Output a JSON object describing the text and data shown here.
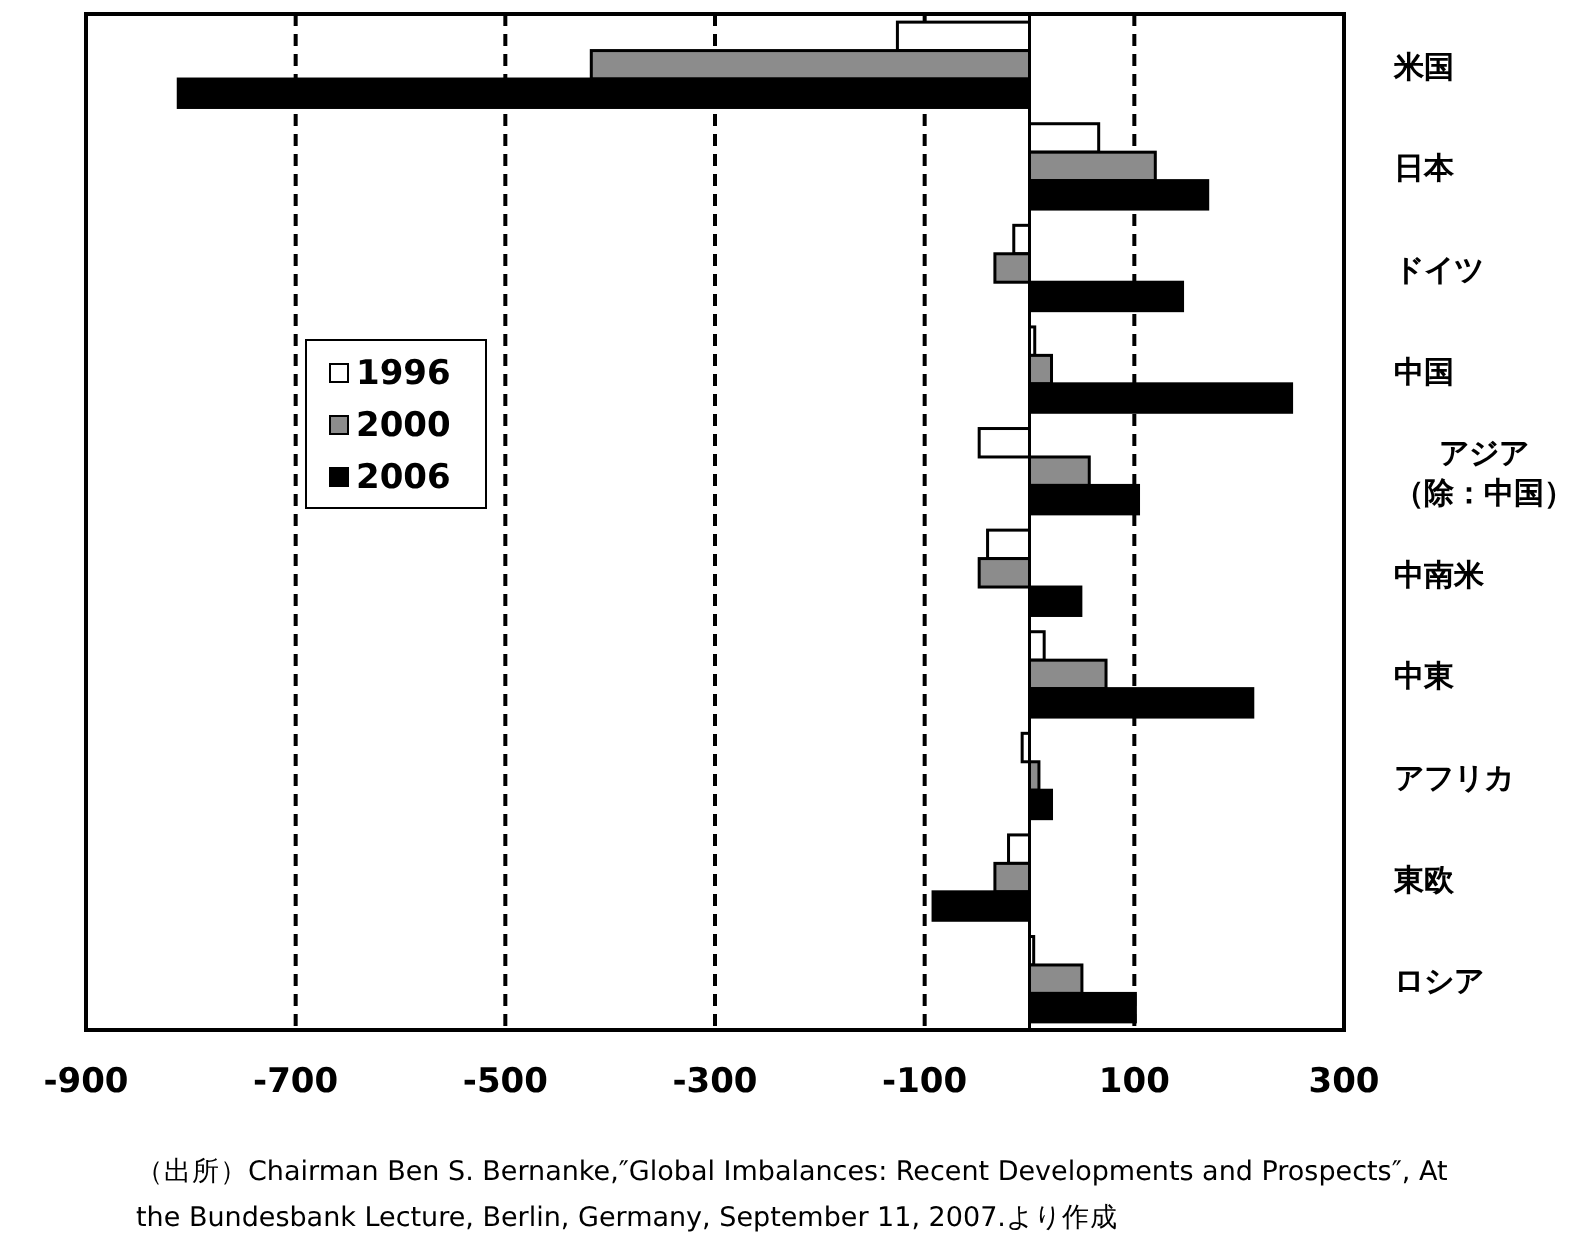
{
  "chart_data": {
    "type": "bar",
    "orientation": "horizontal",
    "categories": [
      "米国",
      "日本",
      "ドイツ",
      "中国",
      "アジア（除：中国）",
      "中南米",
      "中東",
      "アフリカ",
      "東欧",
      "ロシア"
    ],
    "series": [
      {
        "name": "1996",
        "color": "#ffffff",
        "values": [
          -126,
          66,
          -15,
          5,
          -48,
          -40,
          14,
          -7,
          -20,
          4
        ]
      },
      {
        "name": "2000",
        "color": "#8c8c8c",
        "values": [
          -418,
          120,
          -33,
          21,
          57,
          -48,
          73,
          9,
          -33,
          50
        ]
      },
      {
        "name": "2006",
        "color": "#000000",
        "values": [
          -812,
          170,
          146,
          250,
          104,
          49,
          213,
          21,
          -92,
          101
        ]
      }
    ],
    "xlim": [
      -900,
      300
    ],
    "xticks": [
      -900,
      -700,
      -500,
      -300,
      -100,
      100,
      300
    ],
    "grid": "x",
    "legend": "left",
    "annotations": [
      "（出所）Chairman Ben S. Bernanke,″Global Imbalances: Recent Developments and Prospects″, At the Bundesbank Lecture, Berlin, Germany, September 11, 2007.より作成"
    ]
  }
}
